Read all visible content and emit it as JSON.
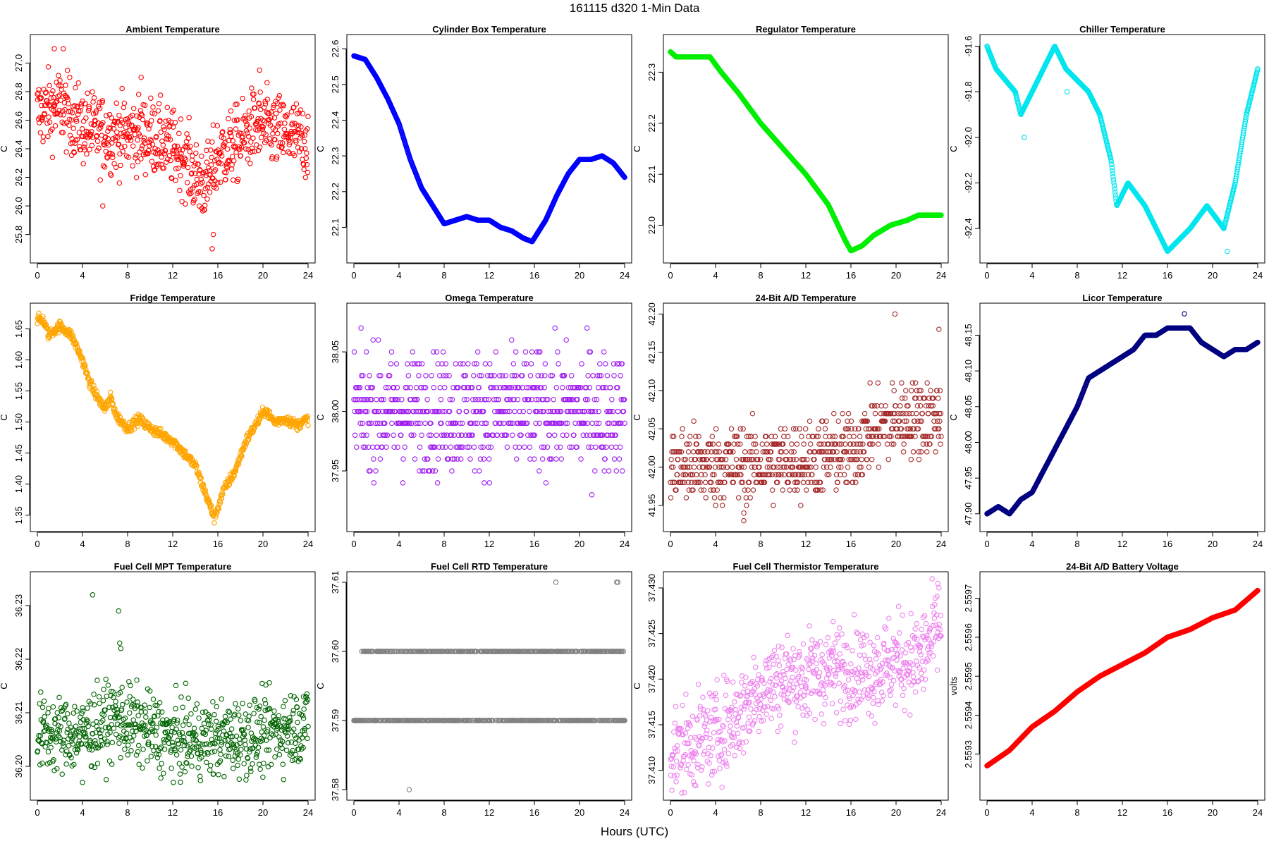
{
  "title": "161115    d320    1-Min Data",
  "xlabel": "Hours (UTC)",
  "chart_data": [
    {
      "type": "scatter",
      "title": "Ambient Temperature",
      "ylabel": "C",
      "color": "#ff0000",
      "xlim": [
        0,
        24
      ],
      "xticks": [
        0,
        4,
        8,
        12,
        16,
        20,
        24
      ],
      "ylim": [
        25.65,
        27.15
      ],
      "yticks": [
        25.8,
        26.0,
        26.2,
        26.4,
        26.6,
        26.8,
        27.0
      ],
      "trend": [
        [
          0,
          26.65
        ],
        [
          2,
          26.7
        ],
        [
          4,
          26.55
        ],
        [
          6,
          26.5
        ],
        [
          8,
          26.5
        ],
        [
          10,
          26.5
        ],
        [
          12,
          26.4
        ],
        [
          13,
          26.35
        ],
        [
          14,
          26.2
        ],
        [
          15,
          26.15
        ],
        [
          16,
          26.35
        ],
        [
          18,
          26.45
        ],
        [
          19,
          26.55
        ],
        [
          20,
          26.55
        ],
        [
          22,
          26.5
        ],
        [
          24,
          26.45
        ]
      ],
      "spread": 0.13,
      "outliers": [
        [
          1.5,
          27.1
        ],
        [
          2.3,
          27.1
        ],
        [
          15.6,
          25.8
        ],
        [
          15.5,
          25.7
        ],
        [
          5.8,
          26.0
        ],
        [
          19.7,
          26.95
        ],
        [
          9.2,
          26.9
        ]
      ]
    },
    {
      "type": "scatter",
      "title": "Cylinder Box Temperature",
      "ylabel": "C",
      "color": "#0000ff",
      "xlim": [
        0,
        24
      ],
      "xticks": [
        0,
        4,
        8,
        12,
        16,
        20,
        24
      ],
      "ylim": [
        22.02,
        22.62
      ],
      "yticks": [
        22.1,
        22.2,
        22.3,
        22.4,
        22.5,
        22.6
      ],
      "trend": [
        [
          0,
          22.58
        ],
        [
          1,
          22.57
        ],
        [
          2,
          22.52
        ],
        [
          3,
          22.46
        ],
        [
          4,
          22.39
        ],
        [
          5,
          22.29
        ],
        [
          6,
          22.21
        ],
        [
          7,
          22.16
        ],
        [
          8,
          22.11
        ],
        [
          9,
          22.12
        ],
        [
          10,
          22.13
        ],
        [
          11,
          22.12
        ],
        [
          12,
          22.12
        ],
        [
          13,
          22.1
        ],
        [
          14,
          22.09
        ],
        [
          15,
          22.07
        ],
        [
          15.8,
          22.06
        ],
        [
          17,
          22.12
        ],
        [
          18,
          22.19
        ],
        [
          19,
          22.25
        ],
        [
          20,
          22.29
        ],
        [
          21,
          22.29
        ],
        [
          22,
          22.3
        ],
        [
          23,
          22.28
        ],
        [
          24,
          22.24
        ]
      ],
      "spread": 0.0,
      "outliers": []
    },
    {
      "type": "scatter",
      "title": "Regulator Temperature",
      "ylabel": "C",
      "color": "#00ee00",
      "xlim": [
        0,
        24
      ],
      "xticks": [
        0,
        4,
        8,
        12,
        16,
        20,
        24
      ],
      "ylim": [
        21.94,
        22.36
      ],
      "yticks": [
        22.0,
        22.1,
        22.2,
        22.3
      ],
      "trend": [
        [
          0,
          22.34
        ],
        [
          0.5,
          22.33
        ],
        [
          1.5,
          22.33
        ],
        [
          3.5,
          22.33
        ],
        [
          4.5,
          22.3
        ],
        [
          6,
          22.26
        ],
        [
          8,
          22.2
        ],
        [
          10,
          22.15
        ],
        [
          12,
          22.1
        ],
        [
          14,
          22.04
        ],
        [
          15.5,
          21.97
        ],
        [
          16,
          21.95
        ],
        [
          17,
          21.96
        ],
        [
          18,
          21.98
        ],
        [
          19.5,
          22.0
        ],
        [
          21,
          22.01
        ],
        [
          22,
          22.02
        ],
        [
          24,
          22.02
        ]
      ],
      "spread": 0.0,
      "outliers": [
        [
          23.6,
          22.02
        ]
      ]
    },
    {
      "type": "scatter",
      "title": "Chiller Temperature",
      "ylabel": "C",
      "color": "#00e5ee",
      "xlim": [
        0,
        24
      ],
      "xticks": [
        0,
        4,
        8,
        12,
        16,
        20,
        24
      ],
      "ylim": [
        -92.52,
        -91.58
      ],
      "yticks": [
        -92.4,
        -92.2,
        -92.0,
        -91.8,
        -91.6
      ],
      "trend": [
        [
          0,
          -91.6
        ],
        [
          0.8,
          -91.7
        ],
        [
          2.5,
          -91.8
        ],
        [
          3,
          -91.9
        ],
        [
          4,
          -91.8
        ],
        [
          5,
          -91.7
        ],
        [
          6,
          -91.6
        ],
        [
          7,
          -91.7
        ],
        [
          9,
          -91.8
        ],
        [
          10,
          -91.9
        ],
        [
          11,
          -92.1
        ],
        [
          11.5,
          -92.3
        ],
        [
          12.5,
          -92.2
        ],
        [
          14,
          -92.3
        ],
        [
          15,
          -92.4
        ],
        [
          16,
          -92.5
        ],
        [
          18,
          -92.4
        ],
        [
          19.5,
          -92.3
        ],
        [
          21,
          -92.4
        ],
        [
          22,
          -92.2
        ],
        [
          23,
          -91.9
        ],
        [
          24,
          -91.7
        ]
      ],
      "spread": 0.0,
      "outliers": [
        [
          3.3,
          -92.0
        ],
        [
          7.1,
          -91.8
        ],
        [
          21.3,
          -92.5
        ]
      ]
    },
    {
      "type": "scatter",
      "title": "Fridge Temperature",
      "ylabel": "C",
      "color": "#ffa500",
      "xlim": [
        0,
        24
      ],
      "xticks": [
        0,
        4,
        8,
        12,
        16,
        20,
        24
      ],
      "ylim": [
        1.335,
        1.68
      ],
      "yticks": [
        1.35,
        1.4,
        1.45,
        1.5,
        1.55,
        1.6,
        1.65
      ],
      "trend": [
        [
          0,
          1.665
        ],
        [
          0.5,
          1.665
        ],
        [
          1,
          1.64
        ],
        [
          2,
          1.655
        ],
        [
          3,
          1.64
        ],
        [
          4,
          1.6
        ],
        [
          4.5,
          1.57
        ],
        [
          5,
          1.55
        ],
        [
          6,
          1.52
        ],
        [
          6.5,
          1.54
        ],
        [
          7,
          1.51
        ],
        [
          8,
          1.49
        ],
        [
          9,
          1.505
        ],
        [
          10,
          1.49
        ],
        [
          11,
          1.48
        ],
        [
          12,
          1.47
        ],
        [
          13,
          1.45
        ],
        [
          14,
          1.43
        ],
        [
          15,
          1.38
        ],
        [
          15.7,
          1.345
        ],
        [
          16.5,
          1.39
        ],
        [
          17.5,
          1.42
        ],
        [
          18.5,
          1.47
        ],
        [
          19.5,
          1.5
        ],
        [
          20.2,
          1.52
        ],
        [
          21,
          1.5
        ],
        [
          22,
          1.505
        ],
        [
          23,
          1.495
        ],
        [
          24,
          1.505
        ]
      ],
      "spread": 0.004,
      "outliers": []
    },
    {
      "type": "scatter",
      "title": "Omega Temperature",
      "ylabel": "C",
      "color": "#a020f0",
      "xlim": [
        0,
        24
      ],
      "xticks": [
        0,
        4,
        8,
        12,
        16,
        20,
        24
      ],
      "ylim": [
        37.905,
        38.085
      ],
      "yticks": [
        37.95,
        38.0,
        38.05
      ],
      "levels": [
        37.91,
        37.92,
        37.93,
        37.94,
        37.95,
        37.96,
        37.97,
        37.98,
        37.99,
        38.0,
        38.01,
        38.02,
        38.03,
        38.04,
        38.05,
        38.06,
        38.07,
        38.08
      ],
      "center": 38.0,
      "spread": 0.025,
      "outliers": []
    },
    {
      "type": "scatter",
      "title": "24-Bit A/D Temperature",
      "ylabel": "C",
      "color": "#a52a2a",
      "xlim": [
        0,
        24
      ],
      "xticks": [
        0,
        4,
        8,
        12,
        16,
        20,
        24
      ],
      "ylim": [
        41.925,
        42.205
      ],
      "yticks": [
        41.95,
        42.0,
        42.05,
        42.1,
        42.15,
        42.2
      ],
      "levels_step": 0.01,
      "trend": [
        [
          0,
          42.0
        ],
        [
          8,
          42.005
        ],
        [
          12,
          42.01
        ],
        [
          16,
          42.02
        ],
        [
          18,
          42.05
        ],
        [
          20,
          42.06
        ],
        [
          24,
          42.07
        ]
      ],
      "spread": 0.025,
      "outliers": [
        [
          19.9,
          42.2
        ],
        [
          23.8,
          42.18
        ],
        [
          6.5,
          41.93
        ]
      ]
    },
    {
      "type": "scatter",
      "title": "Licor Temperature",
      "ylabel": "C",
      "color": "#000080",
      "xlim": [
        0,
        24
      ],
      "xticks": [
        0,
        4,
        8,
        12,
        16,
        20,
        24
      ],
      "ylim": [
        47.885,
        48.185
      ],
      "yticks": [
        47.9,
        47.95,
        48.0,
        48.05,
        48.1,
        48.15
      ],
      "trend": [
        [
          0,
          47.9
        ],
        [
          1,
          47.91
        ],
        [
          2,
          47.9
        ],
        [
          3,
          47.92
        ],
        [
          4,
          47.93
        ],
        [
          5,
          47.96
        ],
        [
          6,
          47.99
        ],
        [
          7,
          48.02
        ],
        [
          8,
          48.05
        ],
        [
          9,
          48.09
        ],
        [
          10,
          48.1
        ],
        [
          11,
          48.11
        ],
        [
          12,
          48.12
        ],
        [
          13,
          48.13
        ],
        [
          14,
          48.15
        ],
        [
          15,
          48.15
        ],
        [
          16,
          48.16
        ],
        [
          17,
          48.16
        ],
        [
          18,
          48.16
        ],
        [
          19,
          48.14
        ],
        [
          20,
          48.13
        ],
        [
          21,
          48.12
        ],
        [
          22,
          48.13
        ],
        [
          23,
          48.13
        ],
        [
          24,
          48.14
        ]
      ],
      "spread": 0.0,
      "outliers": [
        [
          17.5,
          48.18
        ]
      ]
    },
    {
      "type": "scatter",
      "title": "Fuel Cell MPT Temperature",
      "ylabel": "C",
      "color": "#006400",
      "xlim": [
        0,
        24
      ],
      "xticks": [
        0,
        4,
        8,
        12,
        16,
        20,
        24
      ],
      "ylim": [
        36.195,
        36.235
      ],
      "yticks": [
        36.2,
        36.21,
        36.22,
        36.23
      ],
      "trend": [
        [
          0,
          36.206
        ],
        [
          4,
          36.206
        ],
        [
          7,
          36.209
        ],
        [
          8,
          36.208
        ],
        [
          12,
          36.205
        ],
        [
          16,
          36.205
        ],
        [
          20,
          36.206
        ],
        [
          24,
          36.208
        ]
      ],
      "spread": 0.0035,
      "outliers": [
        [
          4.9,
          36.232
        ],
        [
          7.2,
          36.229
        ],
        [
          7.3,
          36.223
        ],
        [
          7.4,
          36.222
        ],
        [
          8.2,
          36.213
        ],
        [
          4.0,
          36.197
        ],
        [
          23.6,
          36.213
        ]
      ]
    },
    {
      "type": "scatter",
      "title": "Fuel Cell RTD Temperature",
      "ylabel": "C",
      "color": "#808080",
      "xlim": [
        0,
        24
      ],
      "xticks": [
        0,
        4,
        8,
        12,
        16,
        20,
        24
      ],
      "ylim": [
        37.5795,
        37.6105
      ],
      "yticks": [
        37.58,
        37.59,
        37.6,
        37.61
      ],
      "levels": [
        37.59,
        37.6
      ],
      "center": 37.595,
      "spread": 0.0,
      "outliers": [
        [
          17.9,
          37.61
        ],
        [
          23.3,
          37.61
        ],
        [
          23.4,
          37.61
        ],
        [
          4.9,
          37.58
        ]
      ]
    },
    {
      "type": "scatter",
      "title": "Fuel Cell Thermistor Temperature",
      "ylabel": "C",
      "color": "#ee82ee",
      "xlim": [
        0,
        24
      ],
      "xticks": [
        0,
        4,
        8,
        12,
        16,
        20,
        24
      ],
      "ylim": [
        37.4075,
        37.431
      ],
      "yticks": [
        37.41,
        37.415,
        37.42,
        37.425,
        37.43
      ],
      "trend": [
        [
          0,
          37.412
        ],
        [
          2,
          37.413
        ],
        [
          4,
          37.414
        ],
        [
          6,
          37.416
        ],
        [
          8,
          37.419
        ],
        [
          10,
          37.42
        ],
        [
          12,
          37.42
        ],
        [
          14,
          37.421
        ],
        [
          16,
          37.421
        ],
        [
          18,
          37.421
        ],
        [
          20,
          37.422
        ],
        [
          22,
          37.422
        ],
        [
          24,
          37.426
        ]
      ],
      "spread": 0.0025,
      "outliers": [
        [
          23.7,
          37.4305
        ]
      ]
    },
    {
      "type": "line",
      "title": "24-Bit A/D Battery Voltage",
      "ylabel": "volts",
      "color": "#ff0000",
      "xlim": [
        0,
        24
      ],
      "xticks": [
        0,
        4,
        8,
        12,
        16,
        20,
        24
      ],
      "ylim": [
        2.5592,
        2.55975
      ],
      "yticks": [
        2.5593,
        2.5594,
        2.5595,
        2.5596,
        2.5597
      ],
      "trend": [
        [
          0,
          2.55927
        ],
        [
          2,
          2.55931
        ],
        [
          4,
          2.55937
        ],
        [
          6,
          2.55941
        ],
        [
          8,
          2.55946
        ],
        [
          10,
          2.5595
        ],
        [
          12,
          2.55953
        ],
        [
          14,
          2.55956
        ],
        [
          16,
          2.5596
        ],
        [
          18,
          2.55962
        ],
        [
          20,
          2.55965
        ],
        [
          22,
          2.55967
        ],
        [
          24,
          2.55972
        ]
      ],
      "spread": 0.0,
      "outliers": []
    }
  ]
}
